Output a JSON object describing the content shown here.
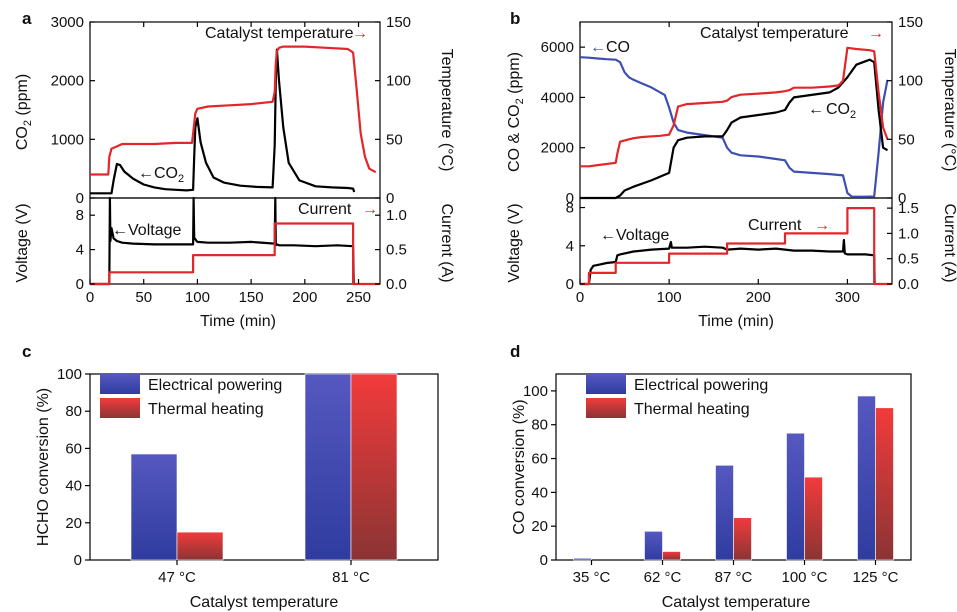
{
  "colors": {
    "black": "#000000",
    "red": "#e3262a",
    "blue": "#3d4fb5",
    "bar_blue_top": "#5a5fc4",
    "bar_blue_bot": "#2e3a9e",
    "bar_red_top": "#f04040",
    "bar_red_bot": "#8a3030"
  },
  "panels": {
    "a": {
      "label": "a",
      "ann_temp": "Catalyst temperature",
      "ann_co2": "CO",
      "ann_co2_sub": "2",
      "ann_voltage": "Voltage",
      "ann_current": "Current",
      "arrow_left": "←",
      "arrow_right": "→",
      "ylabel_top_left_main": "CO",
      "ylabel_top_left_sub": "2",
      "ylabel_top_left_unit": " (ppm)",
      "ylabel_top_right": "Temperature (°C)",
      "ylabel_bot_left": "Voltage (V)",
      "ylabel_bot_right": "Current (A)",
      "xlabel": "Time (min)"
    },
    "b": {
      "label": "b",
      "ann_temp": "Catalyst temperature",
      "ann_co": "CO",
      "ann_co2": "CO",
      "ann_co2_sub": "2",
      "ann_voltage": "Voltage",
      "ann_current": "Current",
      "arrow_left": "←",
      "arrow_right": "→",
      "ylabel_top_left_a": "CO & CO",
      "ylabel_top_left_sub": "2",
      "ylabel_top_left_unit": " (ppm)",
      "ylabel_top_right": "Temperature (°C)",
      "ylabel_bot_left": "Voltage (V)",
      "ylabel_bot_right": "Current (A)",
      "xlabel": "Time (min)"
    },
    "c": {
      "label": "c",
      "ylabel": "HCHO conversion (%)",
      "xlabel": "Catalyst temperature"
    },
    "d": {
      "label": "d",
      "ylabel": "CO conversion (%)",
      "xlabel": "Catalyst temperature"
    }
  },
  "chart_data": [
    {
      "id": "a-top",
      "type": "line",
      "xlim": [
        0,
        270
      ],
      "ylim_left": [
        0,
        3000
      ],
      "ylim_right": [
        0,
        150
      ],
      "xticks": [
        "0",
        "50",
        "100",
        "150",
        "200",
        "250"
      ],
      "yticks_left": [
        "0",
        "1000",
        "2000",
        "3000"
      ],
      "yticks_right": [
        "0",
        "50",
        "100",
        "150"
      ],
      "series": [
        {
          "axis": "left",
          "color": "black",
          "x": [
            0,
            18,
            20,
            22,
            25,
            28,
            32,
            40,
            50,
            60,
            70,
            80,
            90,
            96,
            97,
            98,
            100,
            103,
            108,
            115,
            125,
            140,
            155,
            170,
            172,
            173,
            174,
            176,
            180,
            185,
            195,
            210,
            225,
            240,
            245,
            246
          ],
          "y": [
            80,
            80,
            80,
            300,
            580,
            560,
            450,
            330,
            230,
            180,
            150,
            140,
            130,
            140,
            700,
            1200,
            1360,
            950,
            600,
            350,
            260,
            210,
            190,
            180,
            900,
            2000,
            2530,
            2000,
            1200,
            600,
            300,
            200,
            180,
            170,
            160,
            100
          ]
        },
        {
          "axis": "right",
          "color": "red",
          "x": [
            0,
            17,
            18,
            20,
            25,
            30,
            40,
            60,
            80,
            95,
            96,
            98,
            100,
            110,
            130,
            150,
            170,
            172,
            173,
            174,
            176,
            180,
            200,
            220,
            240,
            245,
            248,
            252,
            256,
            260,
            266
          ],
          "y": [
            20,
            20,
            35,
            42,
            44,
            46,
            46,
            46,
            47,
            47,
            55,
            72,
            76,
            78,
            79,
            80,
            82,
            90,
            115,
            125,
            128,
            129,
            129,
            128,
            127,
            124,
            95,
            55,
            35,
            25,
            22
          ]
        }
      ]
    },
    {
      "id": "a-bottom",
      "type": "line",
      "xlim": [
        0,
        270
      ],
      "ylim_left": [
        0,
        10
      ],
      "ylim_right": [
        0,
        1.25
      ],
      "xticks": [
        "0",
        "50",
        "100",
        "150",
        "200",
        "250"
      ],
      "yticks_left": [
        "0",
        "4",
        "8"
      ],
      "yticks_right": [
        "0.0",
        "0.5",
        "1.0"
      ],
      "series": [
        {
          "axis": "left",
          "color": "black",
          "x": [
            0,
            18,
            18.5,
            19,
            20,
            22,
            25,
            30,
            40,
            60,
            80,
            96,
            96.5,
            97,
            98,
            100,
            110,
            130,
            150,
            172,
            172.5,
            173,
            174,
            176,
            190,
            210,
            230,
            245,
            245.5
          ],
          "y": [
            0,
            0,
            10,
            5,
            6.5,
            5.3,
            5.0,
            4.8,
            4.7,
            4.6,
            4.6,
            4.6,
            10,
            5.4,
            5.2,
            4.9,
            4.8,
            4.8,
            4.9,
            4.7,
            10,
            4.5,
            4.6,
            4.5,
            4.5,
            4.4,
            4.5,
            4.4,
            0
          ]
        },
        {
          "axis": "right",
          "color": "red",
          "x": [
            0,
            18,
            18,
            96,
            96,
            172,
            172,
            245,
            245,
            270
          ],
          "y": [
            0,
            0,
            0.17,
            0.17,
            0.42,
            0.42,
            0.88,
            0.88,
            0,
            0
          ]
        }
      ]
    },
    {
      "id": "b-top",
      "type": "line",
      "xlim": [
        0,
        350
      ],
      "ylim_left": [
        0,
        7000
      ],
      "ylim_right": [
        0,
        150
      ],
      "xticks": [
        "0",
        "100",
        "200",
        "300"
      ],
      "yticks_left": [
        "0",
        "2000",
        "4000",
        "6000"
      ],
      "yticks_right": [
        "0",
        "50",
        "100",
        "150"
      ],
      "series": [
        {
          "axis": "left",
          "color": "blue",
          "x": [
            0,
            10,
            20,
            30,
            40,
            45,
            50,
            55,
            60,
            70,
            80,
            90,
            95,
            100,
            105,
            110,
            120,
            140,
            160,
            165,
            170,
            180,
            200,
            220,
            230,
            235,
            240,
            260,
            280,
            295,
            300,
            305,
            320,
            330,
            335,
            340,
            345
          ],
          "y": [
            5600,
            5580,
            5550,
            5520,
            5500,
            5400,
            5000,
            4800,
            4700,
            4550,
            4400,
            4200,
            4100,
            3600,
            3000,
            2700,
            2600,
            2500,
            2400,
            2000,
            1800,
            1700,
            1650,
            1550,
            1500,
            1200,
            1050,
            1000,
            950,
            900,
            200,
            50,
            50,
            60,
            1800,
            3800,
            4700
          ]
        },
        {
          "axis": "left",
          "color": "black",
          "x": [
            0,
            40,
            42,
            45,
            50,
            60,
            80,
            100,
            102,
            105,
            110,
            120,
            140,
            160,
            165,
            170,
            180,
            200,
            220,
            230,
            235,
            240,
            260,
            280,
            290,
            300,
            310,
            325,
            330,
            335,
            340,
            345
          ],
          "y": [
            0,
            0,
            40,
            100,
            300,
            450,
            700,
            1000,
            1400,
            2000,
            2300,
            2400,
            2450,
            2450,
            2700,
            3000,
            3200,
            3300,
            3400,
            3500,
            3800,
            4000,
            4100,
            4200,
            4400,
            4800,
            5300,
            5500,
            5400,
            3500,
            2000,
            1900
          ]
        },
        {
          "axis": "right",
          "color": "red",
          "x": [
            0,
            10,
            20,
            40,
            42,
            45,
            55,
            60,
            70,
            90,
            100,
            105,
            110,
            120,
            140,
            160,
            165,
            170,
            180,
            200,
            220,
            230,
            235,
            240,
            260,
            280,
            290,
            295,
            300,
            310,
            325,
            330,
            335,
            340,
            345
          ],
          "y": [
            27,
            27,
            28,
            30,
            38,
            48,
            50,
            51,
            52,
            53,
            54,
            62,
            78,
            80,
            81,
            82,
            83,
            86,
            88,
            89,
            90,
            91,
            92,
            94,
            94,
            95,
            96,
            100,
            128,
            127,
            126,
            125,
            90,
            60,
            50
          ]
        }
      ]
    },
    {
      "id": "b-bottom",
      "type": "line",
      "xlim": [
        0,
        350
      ],
      "ylim_left": [
        0,
        9
      ],
      "ylim_right": [
        0,
        1.7
      ],
      "xticks": [
        "0",
        "100",
        "200",
        "300"
      ],
      "yticks_left": [
        "0",
        "4",
        "8"
      ],
      "yticks_right": [
        "0.0",
        "0.5",
        "1.0",
        "1.5"
      ],
      "series": [
        {
          "axis": "left",
          "color": "black",
          "x": [
            0,
            10,
            12,
            15,
            20,
            30,
            40,
            42,
            45,
            60,
            80,
            100,
            102,
            103,
            104,
            120,
            140,
            160,
            165,
            180,
            200,
            220,
            240,
            260,
            280,
            295,
            296,
            297,
            300,
            320,
            330,
            330.5
          ],
          "y": [
            0,
            0,
            1.5,
            1.9,
            2.0,
            2.2,
            2.3,
            3.0,
            3.1,
            3.4,
            3.6,
            3.7,
            4.4,
            3.8,
            3.8,
            3.8,
            3.9,
            3.8,
            3.6,
            3.7,
            3.6,
            3.7,
            3.5,
            3.5,
            3.4,
            3.4,
            4.6,
            3.2,
            3.1,
            3.1,
            3.0,
            0
          ]
        },
        {
          "axis": "right",
          "color": "red",
          "x": [
            0,
            10,
            10,
            40,
            40,
            100,
            100,
            165,
            165,
            230,
            230,
            300,
            300,
            330,
            330,
            350
          ],
          "y": [
            0,
            0,
            0.22,
            0.22,
            0.42,
            0.42,
            0.6,
            0.6,
            0.8,
            0.8,
            1.0,
            1.0,
            1.5,
            1.5,
            0,
            0
          ]
        }
      ]
    },
    {
      "id": "c",
      "type": "bar",
      "categories": [
        "47 °C",
        "81 °C"
      ],
      "ylim": [
        0,
        100
      ],
      "yticks": [
        "0",
        "20",
        "40",
        "60",
        "80",
        "100"
      ],
      "series": [
        {
          "name": "Electrical powering",
          "values": [
            57,
            100
          ]
        },
        {
          "name": "Thermal heating",
          "values": [
            15,
            100
          ]
        }
      ],
      "legend": "top-left"
    },
    {
      "id": "d",
      "type": "bar",
      "categories": [
        "35 °C",
        "62 °C",
        "87 °C",
        "100 °C",
        "125 °C"
      ],
      "ylim": [
        0,
        110
      ],
      "yticks": [
        "0",
        "20",
        "40",
        "60",
        "80",
        "100"
      ],
      "series": [
        {
          "name": "Electrical powering",
          "values": [
            1,
            17,
            56,
            75,
            97
          ]
        },
        {
          "name": "Thermal heating",
          "values": [
            0,
            5,
            25,
            49,
            90
          ]
        }
      ],
      "legend": "top-left"
    }
  ]
}
